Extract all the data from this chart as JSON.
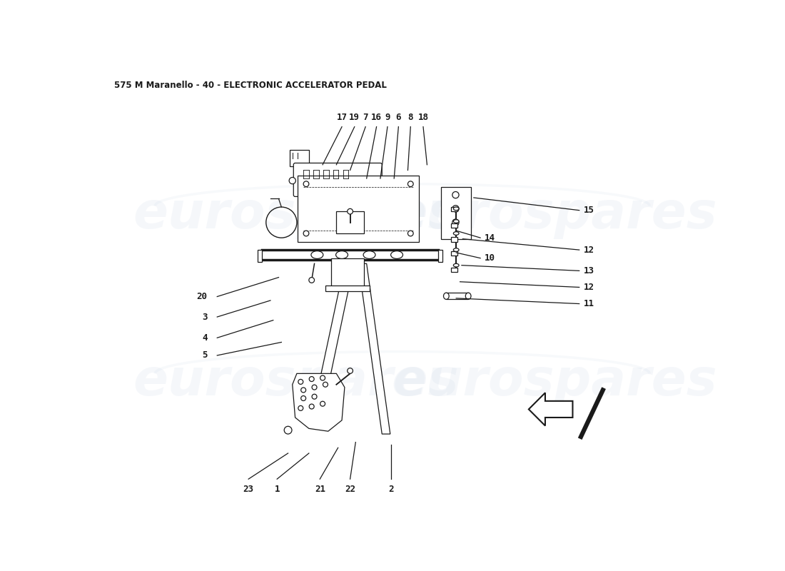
{
  "title": "575 M Maranello - 40 - ELECTRONIC ACCELERATOR PEDAL",
  "title_fontsize": 8.5,
  "bg_color": "#ffffff",
  "line_color": "#1a1a1a",
  "label_fontsize": 9,
  "watermark_color": "#ccd8e8",
  "top_labels": [
    [
      "17",
      440,
      100,
      405,
      175
    ],
    [
      "19",
      463,
      100,
      430,
      175
    ],
    [
      "7",
      483,
      100,
      455,
      185
    ],
    [
      "16",
      503,
      100,
      485,
      200
    ],
    [
      "9",
      523,
      100,
      510,
      200
    ],
    [
      "6",
      543,
      100,
      535,
      200
    ],
    [
      "8",
      565,
      100,
      560,
      185
    ],
    [
      "18",
      588,
      100,
      595,
      175
    ]
  ],
  "right_labels": [
    [
      "15",
      880,
      258,
      680,
      235
    ],
    [
      "14",
      700,
      308,
      648,
      295
    ],
    [
      "10",
      700,
      345,
      648,
      335
    ],
    [
      "12",
      880,
      330,
      660,
      310
    ],
    [
      "13",
      880,
      368,
      658,
      358
    ],
    [
      "12",
      880,
      398,
      655,
      388
    ],
    [
      "11",
      880,
      428,
      648,
      418
    ]
  ],
  "left_labels": [
    [
      "20",
      195,
      415,
      325,
      380
    ],
    [
      "3",
      195,
      452,
      310,
      422
    ],
    [
      "4",
      195,
      490,
      315,
      458
    ],
    [
      "5",
      195,
      522,
      330,
      498
    ]
  ],
  "bottom_labels": [
    [
      "23",
      270,
      752,
      342,
      700
    ],
    [
      "1",
      322,
      752,
      380,
      700
    ],
    [
      "21",
      400,
      752,
      433,
      690
    ],
    [
      "22",
      455,
      752,
      465,
      680
    ],
    [
      "2",
      530,
      752,
      530,
      685
    ]
  ]
}
